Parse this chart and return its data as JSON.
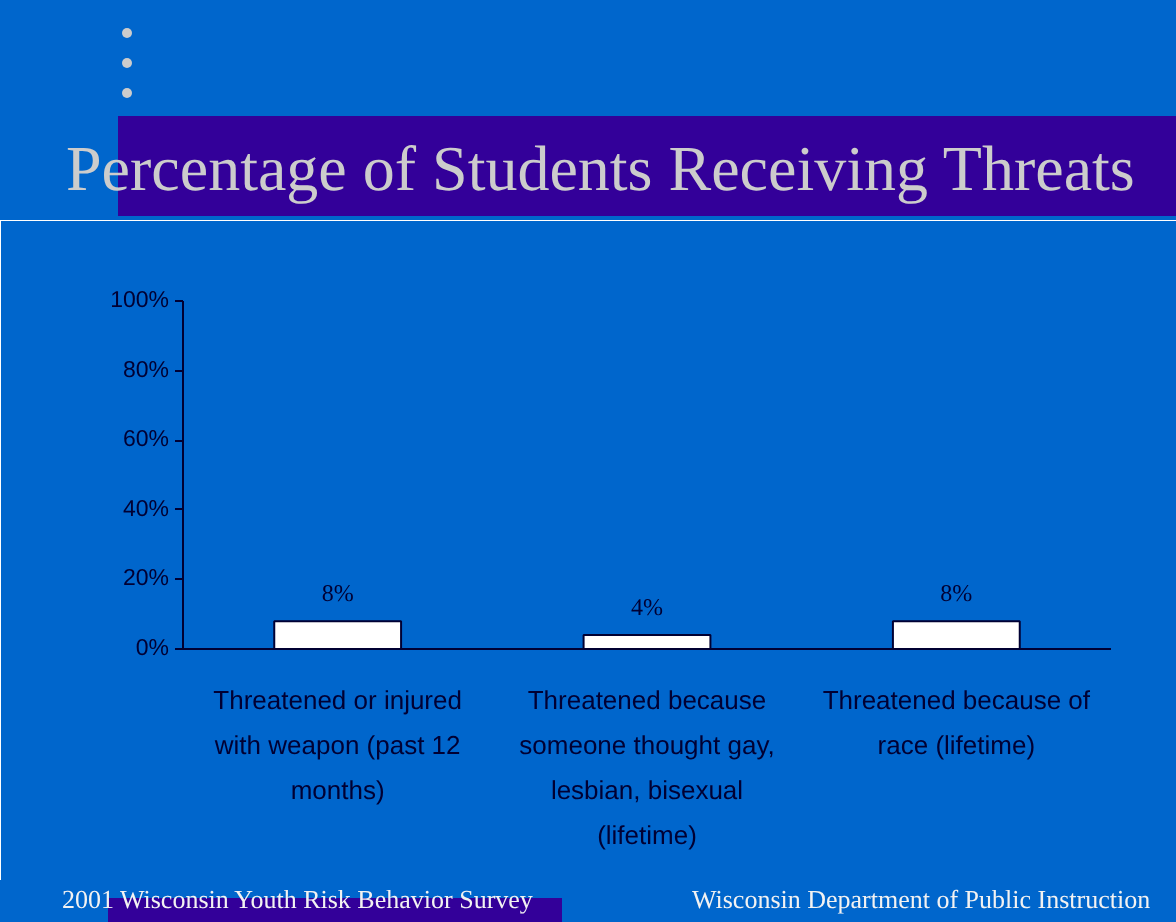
{
  "chart_data": {
    "type": "bar",
    "title": "Percentage of Students Receiving Threats",
    "categories": [
      "Threatened or injured with weapon (past 12 months)",
      "Threatened because someone thought gay, lesbian, bisexual (lifetime)",
      "Threatened because of race (lifetime)"
    ],
    "values": [
      8,
      4,
      8
    ],
    "color": "#ffffff",
    "value_labels": [
      "8%",
      "4%",
      "8%"
    ],
    "ylim": [
      0,
      100
    ],
    "yticks": [
      {
        "value": 0,
        "label": "0%"
      },
      {
        "value": 20,
        "label": "20%"
      },
      {
        "value": 40,
        "label": "40%"
      },
      {
        "value": 60,
        "label": "60%"
      },
      {
        "value": 80,
        "label": "80%"
      },
      {
        "value": 100,
        "label": "100%"
      }
    ],
    "grid": false,
    "annotations": [
      "2001 Wisconsin Youth Risk Behavior Survey",
      "Wisconsin Department of Public Instruction"
    ]
  }
}
